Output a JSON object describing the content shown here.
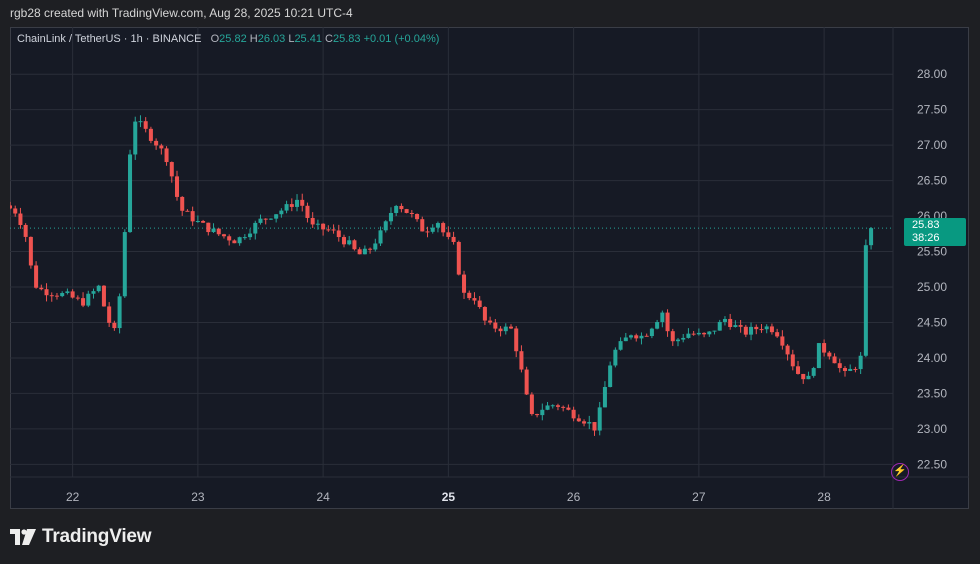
{
  "caption": "rgb28 created with TradingView.com, Aug 28, 2025 10:21 UTC-4",
  "legend": {
    "symbol": "ChainLink / TetherUS · 1h · BINANCE",
    "open_label": "O",
    "open": "25.82",
    "high_label": "H",
    "high": "26.03",
    "low_label": "L",
    "low": "25.41",
    "close_label": "C",
    "close": "25.83",
    "change": "+0.01 (+0.04%)"
  },
  "price_tag": {
    "price": "25.83",
    "countdown": "38:26"
  },
  "brand": {
    "name": "TradingView"
  },
  "colors": {
    "up": "#26a69a",
    "down": "#ef5350",
    "background": "#161a25",
    "grid": "#2a2e39"
  },
  "chart_data": {
    "type": "candlestick",
    "interval": "1h",
    "ylim": [
      22.35,
      28.2
    ],
    "yticks": [
      28.0,
      27.5,
      27.0,
      26.5,
      26.0,
      25.5,
      25.0,
      24.5,
      24.0,
      23.5,
      23.0,
      22.5
    ],
    "ytick_labels": [
      "28.00",
      "27.50",
      "27.00",
      "26.50",
      "26.00",
      "25.50",
      "25.00",
      "24.50",
      "24.00",
      "23.50",
      "23.00",
      "22.50"
    ],
    "x_start": 21.5,
    "x_end": 28.55,
    "xticks": [
      22,
      23,
      24,
      25,
      26,
      27,
      28
    ],
    "xtick_labels": [
      "22",
      "23",
      "24",
      "25",
      "26",
      "27",
      "28"
    ],
    "bold_xtick": "25",
    "last_price": 25.83,
    "anchors": [
      [
        21.5,
        26.15
      ],
      [
        21.6,
        26.05
      ],
      [
        21.67,
        25.7
      ],
      [
        21.73,
        25.05
      ],
      [
        21.8,
        24.95
      ],
      [
        22.0,
        24.88
      ],
      [
        22.12,
        24.78
      ],
      [
        22.25,
        25.0
      ],
      [
        22.32,
        24.55
      ],
      [
        22.38,
        24.35
      ],
      [
        22.44,
        25.2
      ],
      [
        22.47,
        26.15
      ],
      [
        22.52,
        27.4
      ],
      [
        22.6,
        27.25
      ],
      [
        22.7,
        27.05
      ],
      [
        22.8,
        26.8
      ],
      [
        22.9,
        26.1
      ],
      [
        23.05,
        25.9
      ],
      [
        23.2,
        25.75
      ],
      [
        23.35,
        25.65
      ],
      [
        23.55,
        25.95
      ],
      [
        23.75,
        26.12
      ],
      [
        23.85,
        26.25
      ],
      [
        23.95,
        25.85
      ],
      [
        24.1,
        25.8
      ],
      [
        24.25,
        25.6
      ],
      [
        24.32,
        25.45
      ],
      [
        24.4,
        25.5
      ],
      [
        24.52,
        25.8
      ],
      [
        24.62,
        26.2
      ],
      [
        24.75,
        26.0
      ],
      [
        24.85,
        25.78
      ],
      [
        24.95,
        25.95
      ],
      [
        25.02,
        25.7
      ],
      [
        25.1,
        25.55
      ],
      [
        25.15,
        24.9
      ],
      [
        25.25,
        24.85
      ],
      [
        25.35,
        24.45
      ],
      [
        25.55,
        24.4
      ],
      [
        25.62,
        23.85
      ],
      [
        25.7,
        23.15
      ],
      [
        25.8,
        23.3
      ],
      [
        25.9,
        23.35
      ],
      [
        26.0,
        23.25
      ],
      [
        26.15,
        23.1
      ],
      [
        26.22,
        23.0
      ],
      [
        26.3,
        23.65
      ],
      [
        26.35,
        24.05
      ],
      [
        26.5,
        24.35
      ],
      [
        26.6,
        24.3
      ],
      [
        26.75,
        24.65
      ],
      [
        26.82,
        24.2
      ],
      [
        26.95,
        24.35
      ],
      [
        27.1,
        24.3
      ],
      [
        27.25,
        24.55
      ],
      [
        27.4,
        24.35
      ],
      [
        27.55,
        24.45
      ],
      [
        27.65,
        24.4
      ],
      [
        27.72,
        24.2
      ],
      [
        27.82,
        23.8
      ],
      [
        27.92,
        23.7
      ],
      [
        28.0,
        24.15
      ],
      [
        28.1,
        24.05
      ],
      [
        28.2,
        23.75
      ],
      [
        28.3,
        23.9
      ],
      [
        28.35,
        24.05
      ],
      [
        28.38,
        25.83
      ]
    ]
  }
}
